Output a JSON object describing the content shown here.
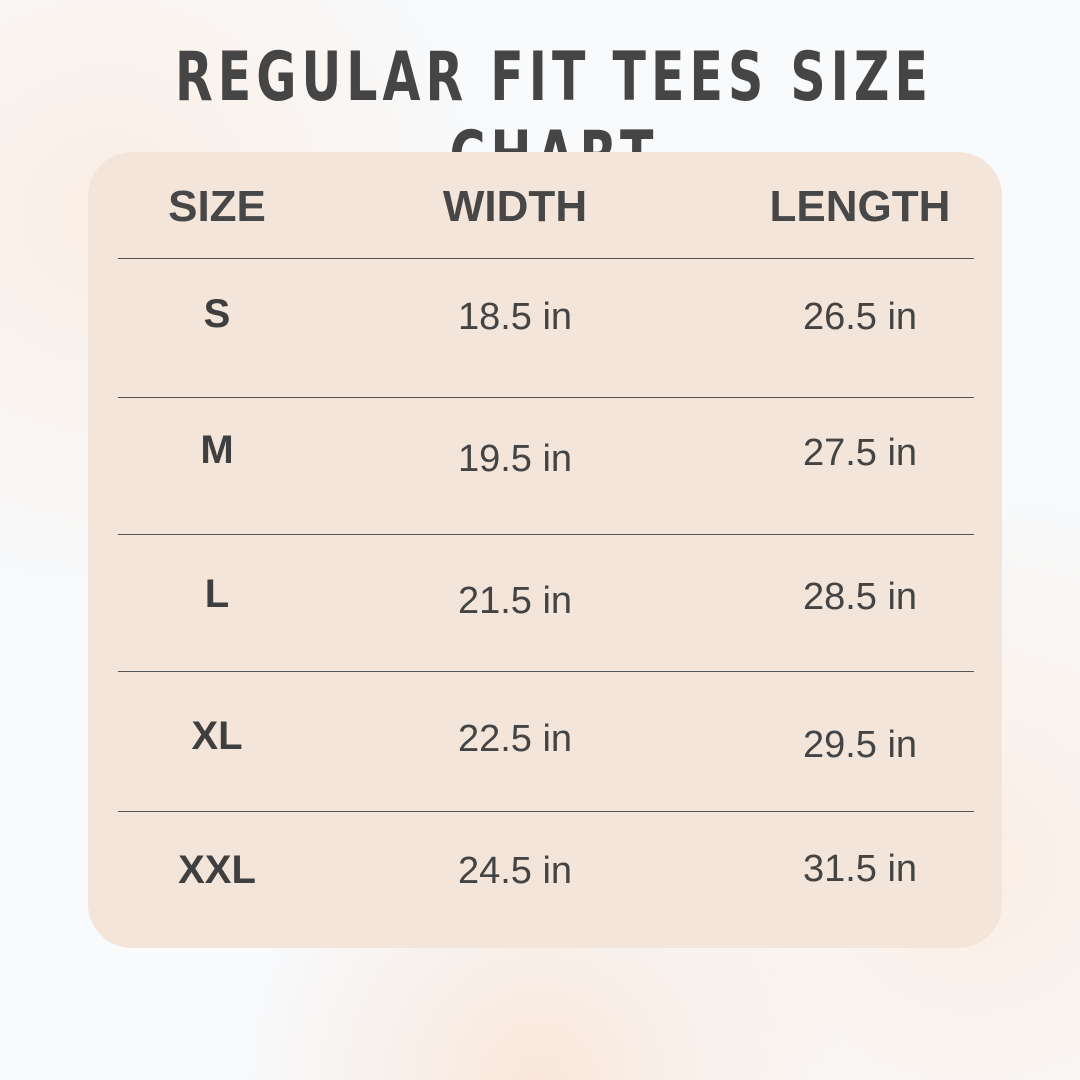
{
  "title": "REGULAR FIT TEES SIZE CHART",
  "headers": [
    "SIZE",
    "WIDTH",
    "LENGTH"
  ],
  "rows": [
    {
      "size": "S",
      "width": "18.5 in",
      "length": "26.5 in"
    },
    {
      "size": "M",
      "width": "19.5 in",
      "length": "27.5 in"
    },
    {
      "size": "L",
      "width": "21.5 in",
      "length": "28.5 in"
    },
    {
      "size": "XL",
      "width": "22.5 in",
      "length": "29.5 in"
    },
    {
      "size": "XXL",
      "width": "24.5 in",
      "length": "31.5 in"
    }
  ]
}
